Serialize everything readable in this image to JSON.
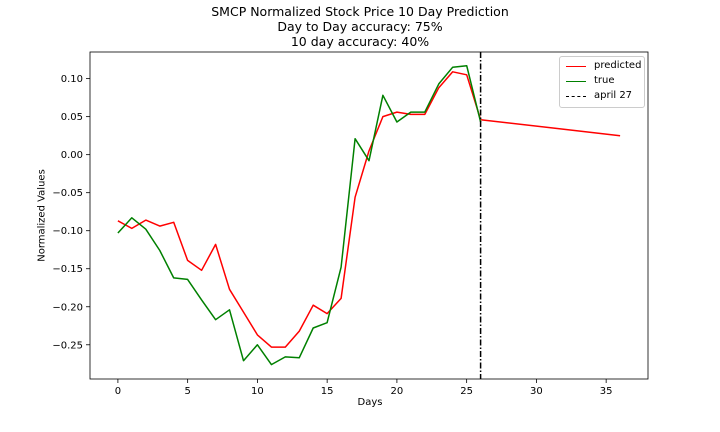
{
  "chart_data": {
    "type": "line",
    "title_lines": [
      "SMCP Normalized Stock Price 10 Day Prediction",
      "Day to Day accuracy: 75%",
      "10 day accuracy: 40%"
    ],
    "xlabel": "Days",
    "ylabel": "Normalized Values",
    "xlim": [
      -2,
      38
    ],
    "ylim": [
      -0.295,
      0.135
    ],
    "xticks": [
      0,
      5,
      10,
      15,
      20,
      25,
      30,
      35
    ],
    "yticks": [
      -0.25,
      -0.2,
      -0.15,
      -0.1,
      -0.05,
      0.0,
      0.05,
      0.1
    ],
    "ytick_labels": [
      "−0.25",
      "−0.20",
      "−0.15",
      "−0.10",
      "−0.05",
      "0.00",
      "0.05",
      "0.10"
    ],
    "legend_position": "top-right",
    "series": [
      {
        "name": "predicted",
        "color": "#ff0000",
        "points": [
          [
            0,
            -0.087
          ],
          [
            1,
            -0.097
          ],
          [
            2,
            -0.086
          ],
          [
            3,
            -0.094
          ],
          [
            4,
            -0.089
          ],
          [
            5,
            -0.139
          ],
          [
            6,
            -0.152
          ],
          [
            7,
            -0.118
          ],
          [
            8,
            -0.177
          ],
          [
            9,
            -0.207
          ],
          [
            10,
            -0.237
          ],
          [
            11,
            -0.253
          ],
          [
            12,
            -0.253
          ],
          [
            13,
            -0.232
          ],
          [
            14,
            -0.198
          ],
          [
            15,
            -0.209
          ],
          [
            16,
            -0.189
          ],
          [
            17,
            -0.056
          ],
          [
            18,
            0.005
          ],
          [
            19,
            0.05
          ],
          [
            20,
            0.056
          ],
          [
            21,
            0.053
          ],
          [
            22,
            0.053
          ],
          [
            23,
            0.088
          ],
          [
            24,
            0.109
          ],
          [
            25,
            0.105
          ],
          [
            26,
            0.046
          ],
          [
            36,
            0.025
          ]
        ]
      },
      {
        "name": "true",
        "color": "#008000",
        "points": [
          [
            0,
            -0.103
          ],
          [
            1,
            -0.083
          ],
          [
            2,
            -0.098
          ],
          [
            3,
            -0.126
          ],
          [
            4,
            -0.162
          ],
          [
            5,
            -0.164
          ],
          [
            6,
            -0.191
          ],
          [
            7,
            -0.217
          ],
          [
            8,
            -0.204
          ],
          [
            9,
            -0.271
          ],
          [
            10,
            -0.25
          ],
          [
            11,
            -0.276
          ],
          [
            12,
            -0.266
          ],
          [
            13,
            -0.267
          ],
          [
            14,
            -0.228
          ],
          [
            15,
            -0.221
          ],
          [
            16,
            -0.148
          ],
          [
            17,
            0.021
          ],
          [
            18,
            -0.008
          ],
          [
            19,
            0.078
          ],
          [
            20,
            0.043
          ],
          [
            21,
            0.056
          ],
          [
            22,
            0.056
          ],
          [
            23,
            0.093
          ],
          [
            24,
            0.115
          ],
          [
            25,
            0.117
          ],
          [
            26,
            0.043
          ]
        ]
      }
    ],
    "vline": {
      "name": "april 27",
      "x": 26,
      "color": "#000000",
      "style": "dash-dot"
    }
  }
}
